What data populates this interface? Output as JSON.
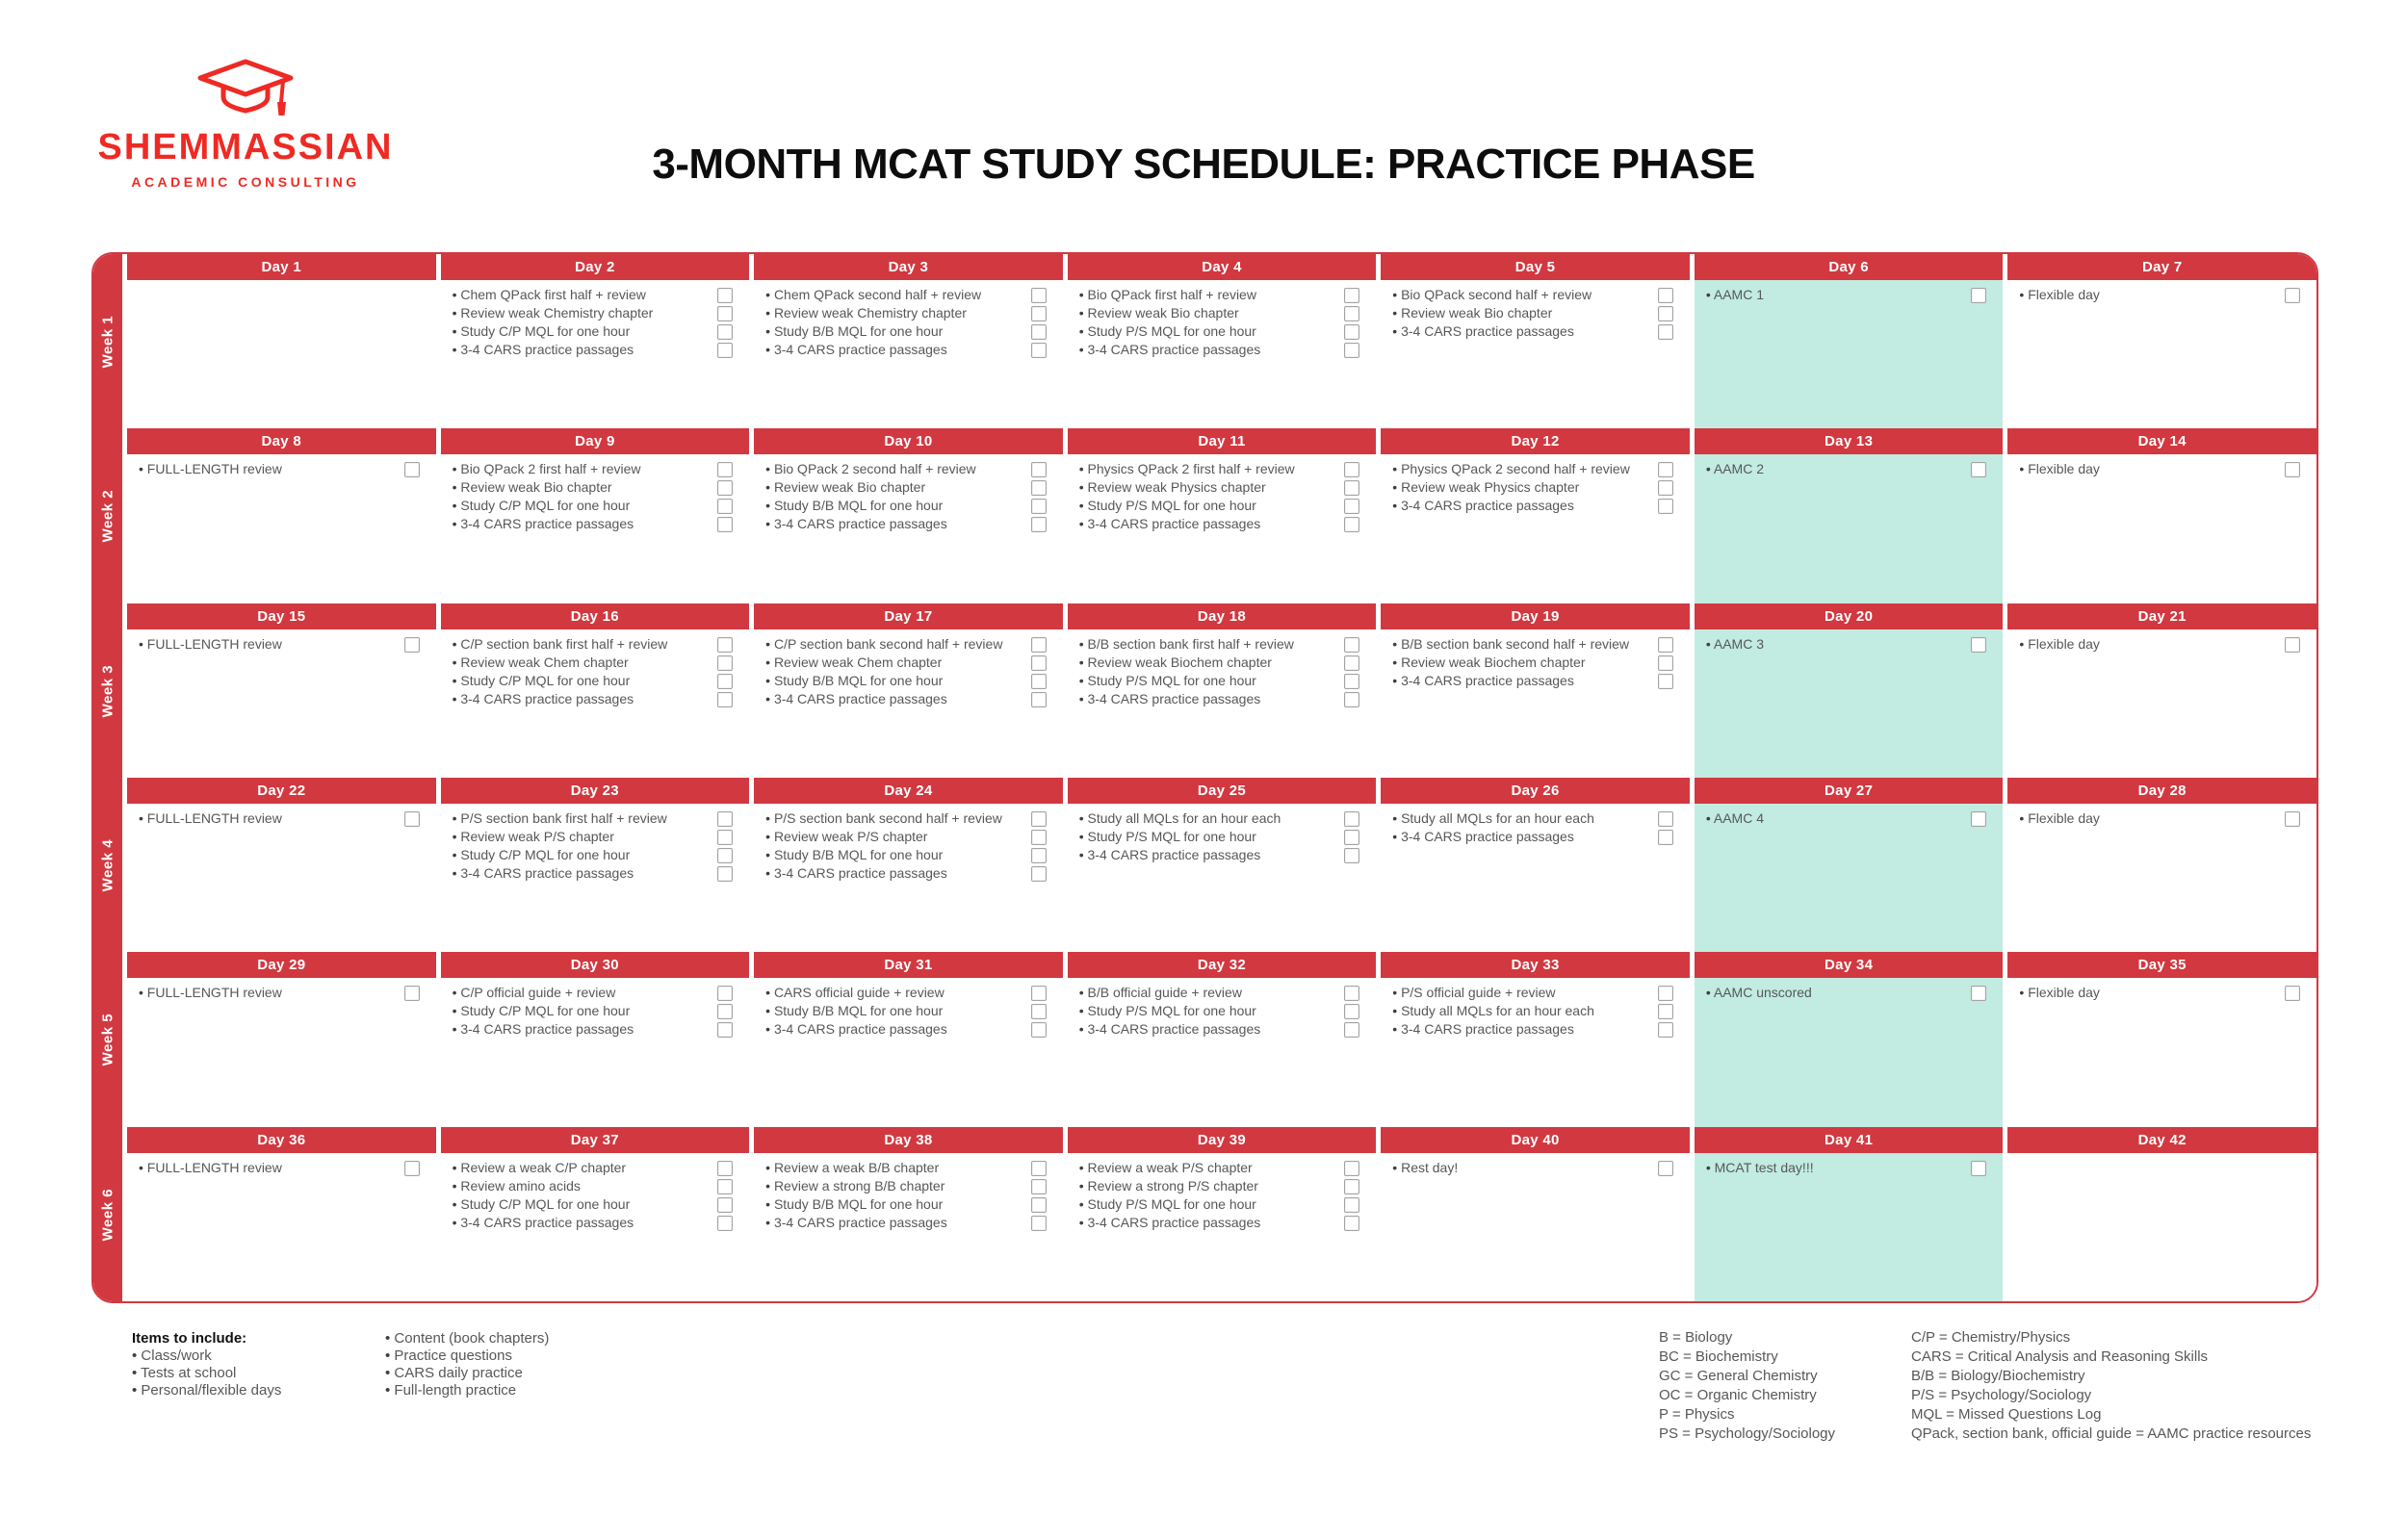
{
  "logo": {
    "brand": "SHEMMASSIAN",
    "sub": "ACADEMIC CONSULTING"
  },
  "title": "3-MONTH MCAT STUDY SCHEDULE: PRACTICE PHASE",
  "colors": {
    "red": "#d23840",
    "logo_red": "#ee2a24",
    "teal": "#c2ebe1",
    "task_text": "#565759"
  },
  "weeks": [
    {
      "label": "Week 1",
      "days": [
        {
          "header": "Day 1",
          "highlight": false,
          "tasks": []
        },
        {
          "header": "Day 2",
          "highlight": false,
          "tasks": [
            "Chem QPack first half + review",
            "Review weak Chemistry chapter",
            "Study C/P MQL for one hour",
            "3-4 CARS practice passages"
          ]
        },
        {
          "header": "Day 3",
          "highlight": false,
          "tasks": [
            "Chem QPack second half + review",
            "Review weak Chemistry chapter",
            "Study B/B MQL for one hour",
            "3-4 CARS practice passages"
          ]
        },
        {
          "header": "Day 4",
          "highlight": false,
          "tasks": [
            "Bio QPack first half + review",
            "Review weak Bio chapter",
            "Study P/S MQL for one hour",
            "3-4 CARS practice passages"
          ]
        },
        {
          "header": "Day 5",
          "highlight": false,
          "tasks": [
            "Bio QPack second half + review",
            "Review weak Bio chapter",
            "3-4 CARS practice passages"
          ]
        },
        {
          "header": "Day 6",
          "highlight": true,
          "tasks": [
            "AAMC 1"
          ]
        },
        {
          "header": "Day 7",
          "highlight": false,
          "tasks": [
            "Flexible day"
          ]
        }
      ]
    },
    {
      "label": "Week 2",
      "days": [
        {
          "header": "Day 8",
          "highlight": false,
          "tasks": [
            "FULL-LENGTH review"
          ]
        },
        {
          "header": "Day 9",
          "highlight": false,
          "tasks": [
            "Bio QPack 2 first half + review",
            "Review weak Bio chapter",
            "Study C/P MQL for one hour",
            "3-4 CARS practice passages"
          ]
        },
        {
          "header": "Day 10",
          "highlight": false,
          "tasks": [
            "Bio QPack 2 second half + review",
            "Review weak Bio chapter",
            "Study B/B MQL for one hour",
            "3-4 CARS practice passages"
          ]
        },
        {
          "header": "Day 11",
          "highlight": false,
          "tasks": [
            "Physics QPack 2 first half + review",
            "Review weak Physics chapter",
            "Study P/S MQL for one hour",
            "3-4 CARS practice passages"
          ]
        },
        {
          "header": "Day 12",
          "highlight": false,
          "tasks": [
            "Physics QPack 2 second half + review",
            "Review weak Physics chapter",
            "3-4 CARS practice passages"
          ]
        },
        {
          "header": "Day 13",
          "highlight": true,
          "tasks": [
            "AAMC 2"
          ]
        },
        {
          "header": "Day 14",
          "highlight": false,
          "tasks": [
            "Flexible day"
          ]
        }
      ]
    },
    {
      "label": "Week 3",
      "days": [
        {
          "header": "Day 15",
          "highlight": false,
          "tasks": [
            "FULL-LENGTH review"
          ]
        },
        {
          "header": "Day 16",
          "highlight": false,
          "tasks": [
            "C/P section bank first half + review",
            "Review weak Chem chapter",
            "Study C/P MQL for one hour",
            "3-4 CARS practice passages"
          ]
        },
        {
          "header": "Day 17",
          "highlight": false,
          "tasks": [
            "C/P section bank second half + review",
            "Review weak Chem chapter",
            "Study B/B MQL for one hour",
            "3-4 CARS practice passages"
          ]
        },
        {
          "header": "Day 18",
          "highlight": false,
          "tasks": [
            "B/B section bank first half + review",
            "Review weak Biochem chapter",
            "Study P/S MQL for one hour",
            "3-4 CARS practice passages"
          ]
        },
        {
          "header": "Day 19",
          "highlight": false,
          "tasks": [
            "B/B section bank second half + review",
            "Review weak Biochem chapter",
            "3-4 CARS practice passages"
          ]
        },
        {
          "header": "Day 20",
          "highlight": true,
          "tasks": [
            "AAMC 3"
          ]
        },
        {
          "header": "Day 21",
          "highlight": false,
          "tasks": [
            "Flexible day"
          ]
        }
      ]
    },
    {
      "label": "Week 4",
      "days": [
        {
          "header": "Day 22",
          "highlight": false,
          "tasks": [
            "FULL-LENGTH review"
          ]
        },
        {
          "header": "Day 23",
          "highlight": false,
          "tasks": [
            "P/S section bank first half + review",
            "Review weak P/S chapter",
            "Study C/P MQL for one hour",
            "3-4 CARS practice passages"
          ]
        },
        {
          "header": "Day 24",
          "highlight": false,
          "tasks": [
            "P/S section bank second half + review",
            "Review weak P/S chapter",
            "Study B/B MQL for one hour",
            "3-4 CARS practice passages"
          ]
        },
        {
          "header": "Day 25",
          "highlight": false,
          "tasks": [
            "Study all MQLs for an hour each",
            "Study P/S MQL for one hour",
            "3-4 CARS practice passages"
          ]
        },
        {
          "header": "Day 26",
          "highlight": false,
          "tasks": [
            "Study all MQLs for an hour each",
            "3-4 CARS practice passages"
          ]
        },
        {
          "header": "Day 27",
          "highlight": true,
          "tasks": [
            "AAMC 4"
          ]
        },
        {
          "header": "Day 28",
          "highlight": false,
          "tasks": [
            "Flexible day"
          ]
        }
      ]
    },
    {
      "label": "Week 5",
      "days": [
        {
          "header": "Day 29",
          "highlight": false,
          "tasks": [
            "FULL-LENGTH review"
          ]
        },
        {
          "header": "Day 30",
          "highlight": false,
          "tasks": [
            "C/P official guide + review",
            "Study C/P MQL for one hour",
            "3-4 CARS practice passages"
          ]
        },
        {
          "header": "Day 31",
          "highlight": false,
          "tasks": [
            "CARS official guide + review",
            "Study B/B MQL for one hour",
            "3-4 CARS practice passages"
          ]
        },
        {
          "header": "Day 32",
          "highlight": false,
          "tasks": [
            "B/B official guide + review",
            "Study P/S MQL for one hour",
            "3-4 CARS practice passages"
          ]
        },
        {
          "header": "Day 33",
          "highlight": false,
          "tasks": [
            "P/S official guide + review",
            "Study all MQLs for an hour each",
            "3-4 CARS practice passages"
          ]
        },
        {
          "header": "Day 34",
          "highlight": true,
          "tasks": [
            "AAMC unscored"
          ]
        },
        {
          "header": "Day 35",
          "highlight": false,
          "tasks": [
            "Flexible day"
          ]
        }
      ]
    },
    {
      "label": "Week 6",
      "days": [
        {
          "header": "Day 36",
          "highlight": false,
          "tasks": [
            "FULL-LENGTH review"
          ]
        },
        {
          "header": "Day 37",
          "highlight": false,
          "tasks": [
            "Review a weak C/P chapter",
            "Review amino acids",
            "Study C/P MQL for one hour",
            "3-4 CARS practice passages"
          ]
        },
        {
          "header": "Day 38",
          "highlight": false,
          "tasks": [
            "Review a weak B/B chapter",
            "Review a strong B/B chapter",
            "Study B/B MQL for one hour",
            "3-4 CARS practice passages"
          ]
        },
        {
          "header": "Day 39",
          "highlight": false,
          "tasks": [
            "Review a weak P/S chapter",
            "Review a strong P/S chapter",
            "Study P/S MQL for one hour",
            "3-4 CARS practice passages"
          ]
        },
        {
          "header": "Day 40",
          "highlight": false,
          "tasks": [
            "Rest day!"
          ]
        },
        {
          "header": "Day 41",
          "highlight": true,
          "tasks": [
            "MCAT test day!!!"
          ]
        },
        {
          "header": "Day 42",
          "highlight": false,
          "tasks": []
        }
      ]
    }
  ],
  "footer": {
    "items_heading": "Items to include:",
    "col1": [
      "Class/work",
      "Tests at school",
      "Personal/flexible days"
    ],
    "col2": [
      "Content (book chapters)",
      "Practice questions",
      "CARS daily practice",
      "Full-length practice"
    ],
    "abbrev_col1": [
      "B = Biology",
      "BC = Biochemistry",
      "GC = General Chemistry",
      "OC = Organic Chemistry",
      "P = Physics",
      "PS = Psychology/Sociology"
    ],
    "abbrev_col2": [
      "C/P = Chemistry/Physics",
      "CARS = Critical Analysis and Reasoning Skills",
      "B/B = Biology/Biochemistry",
      "P/S = Psychology/Sociology",
      "MQL = Missed Questions Log",
      "QPack, section bank, official guide = AAMC practice resources"
    ]
  }
}
